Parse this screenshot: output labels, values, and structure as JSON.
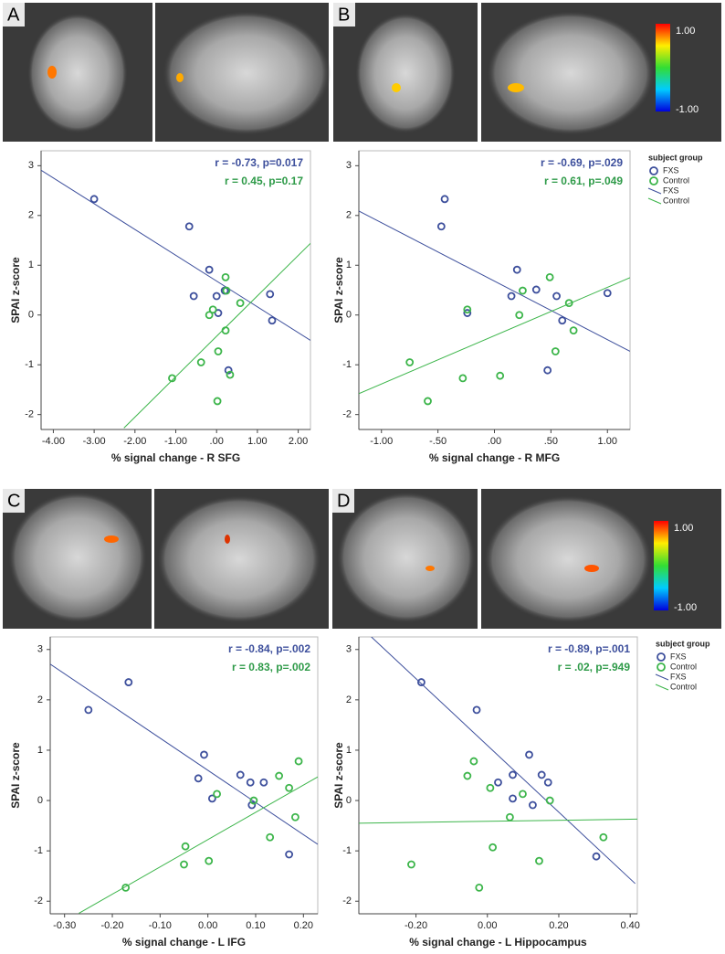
{
  "panel_labels": [
    "A",
    "B",
    "C",
    "D"
  ],
  "colorbar_labels": {
    "top": "1.00",
    "bottom": "-1.00"
  },
  "chart_data": [
    {
      "type": "scatter",
      "xlabel": "% signal change - R SFG",
      "ylabel": "SPAI z-score",
      "xlim": [
        -4.3,
        2.3
      ],
      "ylim": [
        -2.3,
        3.3
      ],
      "xticks": [
        {
          "value": -4,
          "label": "-4.00"
        },
        {
          "value": -3,
          "label": "-3.00"
        },
        {
          "value": -2,
          "label": "-2.00"
        },
        {
          "value": -1,
          "label": "-1.00"
        },
        {
          "value": 0,
          "label": ".00"
        },
        {
          "value": 1,
          "label": "1.00"
        },
        {
          "value": 2,
          "label": "2.00"
        }
      ],
      "yticks": [
        -2,
        -1,
        0,
        1,
        2,
        3
      ],
      "annotations": [
        {
          "text": "r = -0.73, p=0.017",
          "color": "#3d4f9c"
        },
        {
          "text": "r = 0.45, p=0.17",
          "color": "#2e9a48"
        }
      ],
      "series": [
        {
          "name": "FXS",
          "color": "#3d4f9c",
          "x": [
            -3.0,
            -0.67,
            -0.18,
            -0.56,
            0,
            0.2,
            0.04,
            1.31,
            1.36,
            0.29
          ],
          "y": [
            2.33,
            1.78,
            0.91,
            0.38,
            0.38,
            0.49,
            0.04,
            0.42,
            -0.11,
            -1.11
          ],
          "fit": {
            "x": [
              -4.3,
              2.3
            ],
            "y": [
              2.91,
              -0.51
            ]
          }
        },
        {
          "name": "Control",
          "color": "#3cb54a",
          "x": [
            0.22,
            0.24,
            0.58,
            -0.09,
            -0.18,
            0.22,
            -0.38,
            0.04,
            0.33,
            -1.09,
            0.02
          ],
          "y": [
            0.76,
            0.49,
            0.24,
            0.11,
            0.0,
            -0.31,
            -0.95,
            -0.73,
            -1.2,
            -1.27,
            -1.73
          ],
          "fit": {
            "x": [
              -2.27,
              2.3
            ],
            "y": [
              -2.27,
              1.44
            ]
          }
        }
      ]
    },
    {
      "type": "scatter",
      "xlabel": "% signal change - R MFG",
      "ylabel": "SPAI z-score",
      "xlim": [
        -1.2,
        1.2
      ],
      "ylim": [
        -2.3,
        3.3
      ],
      "xticks": [
        {
          "value": -1,
          "label": "-1.00"
        },
        {
          "value": -0.5,
          "label": "-.50"
        },
        {
          "value": 0,
          "label": ".00"
        },
        {
          "value": 0.5,
          "label": ".50"
        },
        {
          "value": 1,
          "label": "1.00"
        }
      ],
      "yticks": [
        -2,
        -1,
        0,
        1,
        2,
        3
      ],
      "annotations": [
        {
          "text": "r = -0.69, p=.029",
          "color": "#3d4f9c"
        },
        {
          "text": "r = 0.61, p=.049",
          "color": "#2e9a48"
        }
      ],
      "legend": true,
      "legend_title": "subject group",
      "series": [
        {
          "name": "FXS",
          "color": "#3d4f9c",
          "x": [
            -0.44,
            -0.47,
            0.2,
            0.15,
            0.37,
            0.55,
            0.6,
            1.0,
            -0.24,
            0.47
          ],
          "y": [
            2.33,
            1.78,
            0.91,
            0.38,
            0.51,
            0.38,
            -0.11,
            0.44,
            0.04,
            -1.11
          ],
          "fit": {
            "x": [
              -1.2,
              1.2
            ],
            "y": [
              2.09,
              -0.73
            ]
          }
        },
        {
          "name": "Control",
          "color": "#3cb54a",
          "x": [
            0.49,
            0.25,
            0.66,
            -0.24,
            0.22,
            0.7,
            -0.75,
            0.54,
            0.05,
            -0.28,
            -0.59
          ],
          "y": [
            0.76,
            0.49,
            0.24,
            0.11,
            0,
            -0.31,
            -0.95,
            -0.73,
            -1.22,
            -1.27,
            -1.73
          ],
          "fit": {
            "x": [
              -1.2,
              1.2
            ],
            "y": [
              -1.58,
              0.75
            ]
          }
        }
      ]
    },
    {
      "type": "scatter",
      "xlabel": "% signal change - L IFG",
      "ylabel": "SPAI z-score",
      "xlim": [
        -0.33,
        0.23
      ],
      "ylim": [
        -2.25,
        3.25
      ],
      "xticks": [
        {
          "value": -0.3,
          "label": "-0.30"
        },
        {
          "value": -0.2,
          "label": "-0.20"
        },
        {
          "value": -0.1,
          "label": "-0.10"
        },
        {
          "value": 0,
          "label": "0.00"
        },
        {
          "value": 0.1,
          "label": "0.10"
        },
        {
          "value": 0.2,
          "label": "0.20"
        }
      ],
      "yticks": [
        -2,
        -1,
        0,
        1,
        2,
        3
      ],
      "annotations": [
        {
          "text": "r = -0.84, p=.002",
          "color": "#3d4f9c"
        },
        {
          "text": "r = 0.83, p=.002",
          "color": "#2e9a48"
        }
      ],
      "series": [
        {
          "name": "FXS",
          "color": "#3d4f9c",
          "x": [
            -0.25,
            -0.166,
            -0.008,
            -0.02,
            0.009,
            0.068,
            0.089,
            0.117,
            0.092,
            0.17
          ],
          "y": [
            1.8,
            2.35,
            0.91,
            0.44,
            0.04,
            0.51,
            0.36,
            0.36,
            -0.09,
            -1.07
          ],
          "fit": {
            "x": [
              -0.33,
              0.23
            ],
            "y": [
              2.71,
              -0.87
            ]
          }
        },
        {
          "name": "Control",
          "color": "#3cb54a",
          "x": [
            0.19,
            0.149,
            0.17,
            0.019,
            0.096,
            0.183,
            -0.047,
            0.13,
            0.002,
            -0.05,
            -0.172
          ],
          "y": [
            0.78,
            0.49,
            0.25,
            0.13,
            0,
            -0.33,
            -0.91,
            -0.73,
            -1.2,
            -1.27,
            -1.73
          ],
          "fit": {
            "x": [
              -0.27,
              0.23
            ],
            "y": [
              -2.24,
              0.47
            ]
          }
        }
      ]
    },
    {
      "type": "scatter",
      "xlabel": "% signal change - L Hippocampus",
      "ylabel": "SPAI z-score",
      "xlim": [
        -0.36,
        0.42
      ],
      "ylim": [
        -2.25,
        3.25
      ],
      "xticks": [
        {
          "value": -0.2,
          "label": "-0.20"
        },
        {
          "value": 0,
          "label": "0.00"
        },
        {
          "value": 0.2,
          "label": "0.20"
        },
        {
          "value": 0.4,
          "label": "0.40"
        }
      ],
      "yticks": [
        -2,
        -1,
        0,
        1,
        2,
        3
      ],
      "annotations": [
        {
          "text": "r = -0.89, p=.001",
          "color": "#3d4f9c"
        },
        {
          "text": "r = .02, p=.949",
          "color": "#2e9a48"
        }
      ],
      "legend": true,
      "legend_title": "subject group",
      "series": [
        {
          "name": "FXS",
          "color": "#3d4f9c",
          "x": [
            -0.185,
            -0.03,
            0.117,
            0.071,
            0.03,
            0.152,
            0.17,
            0.127,
            0.071,
            0.305
          ],
          "y": [
            2.35,
            1.8,
            0.91,
            0.51,
            0.36,
            0.51,
            0.36,
            -0.09,
            0.04,
            -1.11
          ],
          "fit": {
            "x": [
              -0.325,
              0.414
            ],
            "y": [
              3.25,
              -1.65
            ]
          }
        },
        {
          "name": "Control",
          "color": "#3cb54a",
          "x": [
            -0.038,
            -0.056,
            0.008,
            0.099,
            0.175,
            0.063,
            0.015,
            0.325,
            0.145,
            -0.213,
            -0.023
          ],
          "y": [
            0.78,
            0.49,
            0.25,
            0.13,
            0,
            -0.33,
            -0.93,
            -0.73,
            -1.2,
            -1.27,
            -1.73
          ],
          "fit": {
            "x": [
              -0.36,
              0.42
            ],
            "y": [
              -0.45,
              -0.37
            ]
          }
        }
      ]
    }
  ]
}
